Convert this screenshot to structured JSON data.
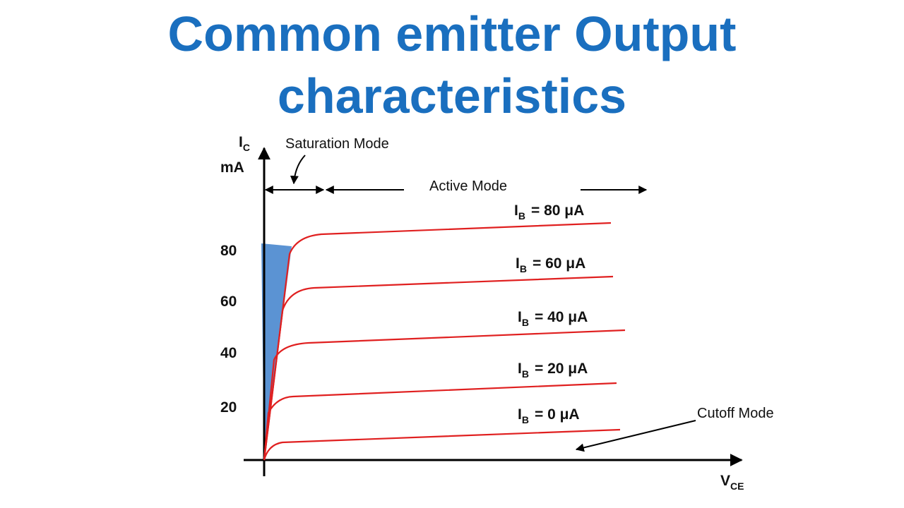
{
  "title": {
    "line1": "Common emitter Output",
    "line2": "characteristics"
  },
  "y_axis": {
    "symbol": "I",
    "subscript": "C",
    "unit": "mA",
    "ticks": [
      "80",
      "60",
      "40",
      "20"
    ]
  },
  "x_axis": {
    "symbol": "V",
    "subscript": "CE"
  },
  "annotations": {
    "saturation": "Saturation Mode",
    "active": "Active Mode",
    "cutoff": "Cutoff Mode"
  },
  "curves": [
    {
      "symbol": "I",
      "subscript": "B",
      "text": "= 80 μA"
    },
    {
      "symbol": "I",
      "subscript": "B",
      "text": "= 60 μA"
    },
    {
      "symbol": "I",
      "subscript": "B",
      "text": "= 40 μA"
    },
    {
      "symbol": "I",
      "subscript": "B",
      "text": "= 20 μA"
    },
    {
      "symbol": "I",
      "subscript": "B",
      "text": "= 0 μA"
    }
  ]
}
